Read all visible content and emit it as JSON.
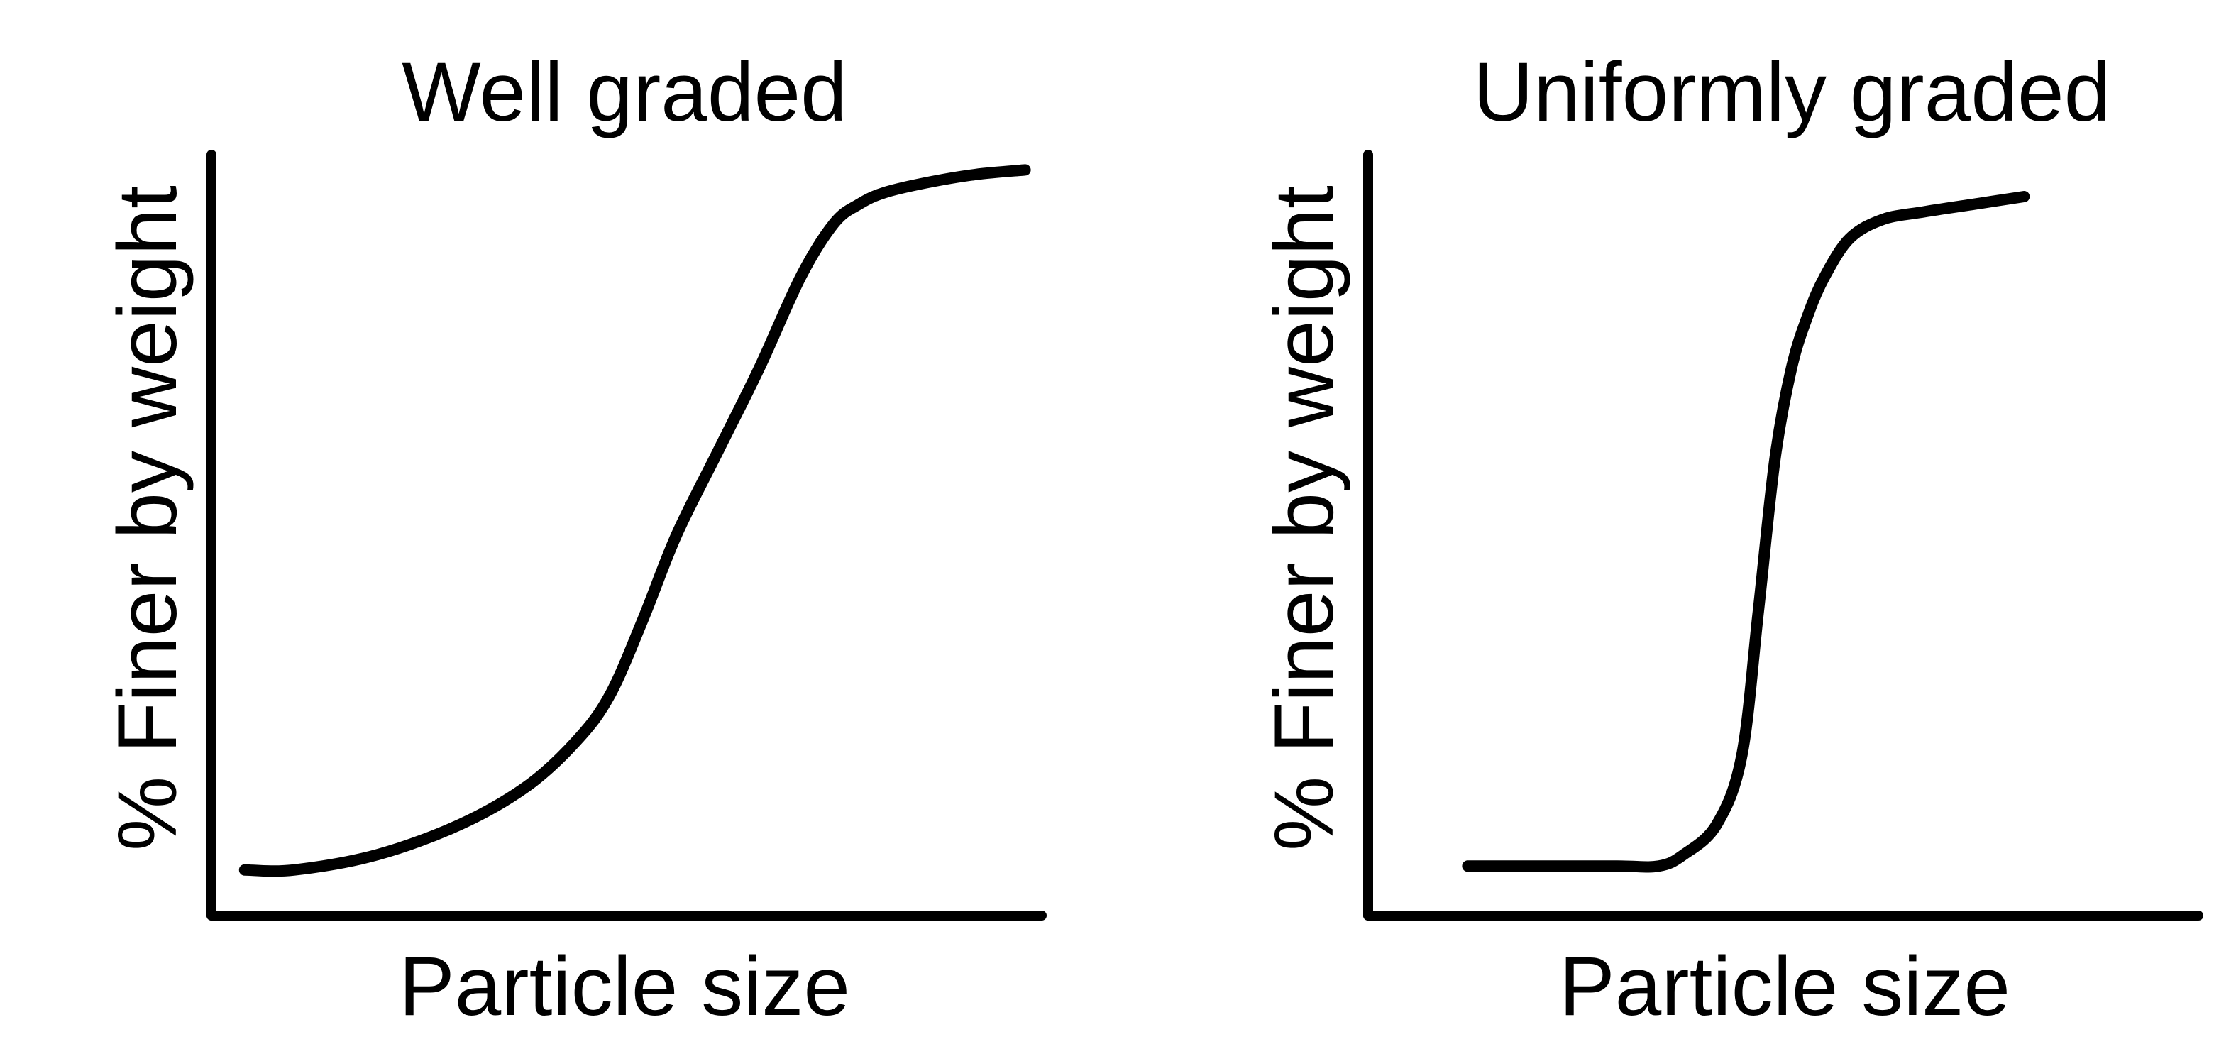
{
  "colors": {
    "ink": "#000000",
    "background": "#ffffff"
  },
  "chart_data": [
    {
      "type": "line",
      "title": "Well graded",
      "xlabel": "Particle size",
      "ylabel": "% Finer by weight",
      "xlim": [
        0,
        100
      ],
      "ylim": [
        0,
        100
      ],
      "grid": false,
      "series": [
        {
          "x": [
            4,
            10,
            20,
            30,
            38,
            44,
            48,
            52,
            56,
            61,
            66,
            71,
            75,
            78,
            81,
            86,
            92,
            98
          ],
          "y": [
            6,
            6,
            8,
            12,
            17,
            23,
            29,
            39,
            50,
            61,
            72,
            84,
            91,
            93.5,
            95,
            96.3,
            97.4,
            98
          ],
          "color": "#000000"
        }
      ]
    },
    {
      "type": "line",
      "title": "Uniformly graded",
      "xlabel": "Particle size",
      "ylabel": "% Finer by weight",
      "xlim": [
        0,
        100
      ],
      "ylim": [
        0,
        100
      ],
      "grid": false,
      "series": [
        {
          "x": [
            12,
            20,
            30,
            35,
            38,
            42,
            45,
            47,
            49,
            51,
            53,
            55,
            58,
            62,
            67,
            73,
            79
          ],
          "y": [
            6.5,
            6.5,
            6.5,
            6.5,
            8,
            12,
            21,
            40,
            60,
            72,
            79,
            84,
            89,
            91.5,
            92.5,
            93.5,
            94.5
          ],
          "color": "#000000"
        }
      ]
    }
  ]
}
